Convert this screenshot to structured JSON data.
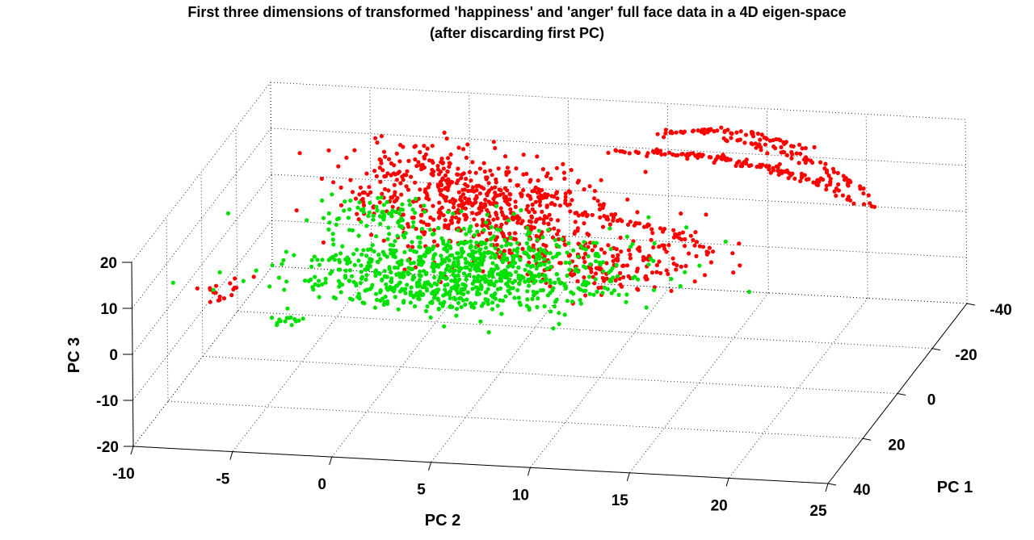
{
  "chart_data": {
    "type": "scatter",
    "projection": "3d",
    "title": "First three dimensions of transformed 'happiness' and 'anger' full face data in a 4D eigen-space",
    "subtitle": "(after discarding first PC)",
    "xlabel": "PC 2",
    "ylabel": "PC 1",
    "zlabel": "PC 3",
    "xlim": [
      -10,
      25
    ],
    "ylim": [
      -40,
      40
    ],
    "zlim": [
      -20,
      20
    ],
    "x_ticks": [
      "-10",
      "-5",
      "0",
      "5",
      "10",
      "15",
      "20",
      "25"
    ],
    "y_ticks": [
      "-40",
      "-20",
      "0",
      "20",
      "40"
    ],
    "z_ticks": [
      "-20",
      "-10",
      "0",
      "10",
      "20"
    ],
    "grid": true,
    "series": [
      {
        "color": "#ff0000",
        "clusters": [
          {
            "center": [
              3,
              -12,
              10
            ],
            "spread": [
              3,
              8,
              2
            ],
            "n": 420
          },
          {
            "center": [
              -1,
              -20,
              12
            ],
            "spread": [
              2,
              6,
              1.5
            ],
            "n": 120
          },
          {
            "center": [
              8,
              2,
              8
            ],
            "spread": [
              3,
              8,
              2
            ],
            "n": 160
          },
          {
            "center": [
              -7,
              18,
              4
            ],
            "spread": [
              0.6,
              2,
              0.8
            ],
            "n": 18
          },
          {
            "center": [
              12,
              8,
              9
            ],
            "spread": [
              2,
              6,
              1.5
            ],
            "n": 90
          }
        ],
        "curves": [
          {
            "from": [
              8,
              -30,
              14
            ],
            "to": [
              20,
              -25,
              12
            ],
            "n": 80
          },
          {
            "from": [
              10,
              -35,
              16
            ],
            "to": [
              18,
              -28,
              18
            ],
            "n": 60
          },
          {
            "from": [
              14,
              -30,
              18
            ],
            "to": [
              22,
              -18,
              14
            ],
            "n": 60
          },
          {
            "from": [
              11,
              -38,
              10
            ],
            "to": [
              22,
              -20,
              10
            ],
            "n": 60
          },
          {
            "from": [
              8,
              -10,
              10
            ],
            "to": [
              16,
              0,
              8
            ],
            "n": 50
          }
        ]
      },
      {
        "color": "#00e000",
        "clusters": [
          {
            "center": [
              4,
              5,
              5
            ],
            "spread": [
              4,
              8,
              2
            ],
            "n": 700
          },
          {
            "center": [
              2,
              10,
              2
            ],
            "spread": [
              3,
              4,
              1
            ],
            "n": 160
          },
          {
            "center": [
              -2,
              -10,
              8
            ],
            "spread": [
              1.5,
              3,
              1
            ],
            "n": 60
          },
          {
            "center": [
              -3,
              30,
              4
            ],
            "spread": [
              0.6,
              1,
              0.3
            ],
            "n": 14
          }
        ],
        "curves": [
          {
            "from": [
              -4,
              5,
              5
            ],
            "to": [
              12,
              10,
              3
            ],
            "n": 60
          }
        ]
      }
    ]
  }
}
